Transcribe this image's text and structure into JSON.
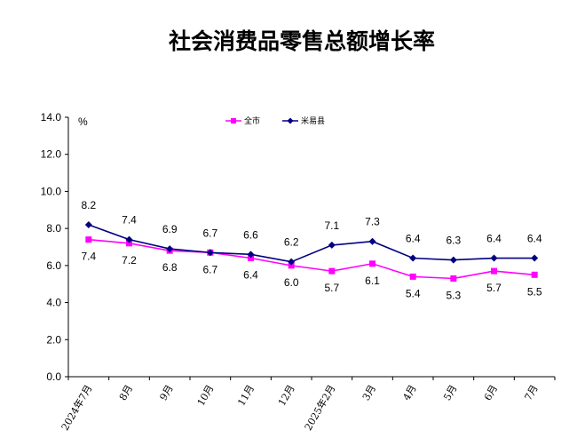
{
  "chart_data": {
    "type": "line",
    "title": "社会消费品零售总额增长率",
    "ylabel": "%",
    "xlabel": "",
    "ylim": [
      0,
      14
    ],
    "yticks": [
      "0.0",
      "2.0",
      "4.0",
      "6.0",
      "8.0",
      "10.0",
      "12.0",
      "14.0"
    ],
    "categories": [
      "2024年7月",
      "8月",
      "9月",
      "10月",
      "11月",
      "12月",
      "2025年2月",
      "3月",
      "4月",
      "5月",
      "6月",
      "7月"
    ],
    "legend_position": "top",
    "grid": false,
    "series": [
      {
        "name": "全市",
        "color": "#ff00ff",
        "marker": "square",
        "values": [
          7.4,
          7.2,
          6.8,
          6.7,
          6.4,
          6.0,
          5.7,
          6.1,
          5.4,
          5.3,
          5.7,
          5.5
        ],
        "labels": [
          "7.4",
          "7.2",
          "6.8",
          "6.7",
          "6.4",
          "6.0",
          "5.7",
          "6.1",
          "5.4",
          "5.3",
          "5.7",
          "5.5"
        ]
      },
      {
        "name": "米易县",
        "color": "#000080",
        "marker": "diamond",
        "values": [
          8.2,
          7.4,
          6.9,
          6.7,
          6.6,
          6.2,
          7.1,
          7.3,
          6.4,
          6.3,
          6.4,
          6.4
        ],
        "labels": [
          "8.2",
          "7.4",
          "6.9",
          "6.7",
          "6.6",
          "6.2",
          "7.1",
          "7.3",
          "6.4",
          "6.3",
          "6.4",
          "6.4"
        ]
      }
    ]
  }
}
